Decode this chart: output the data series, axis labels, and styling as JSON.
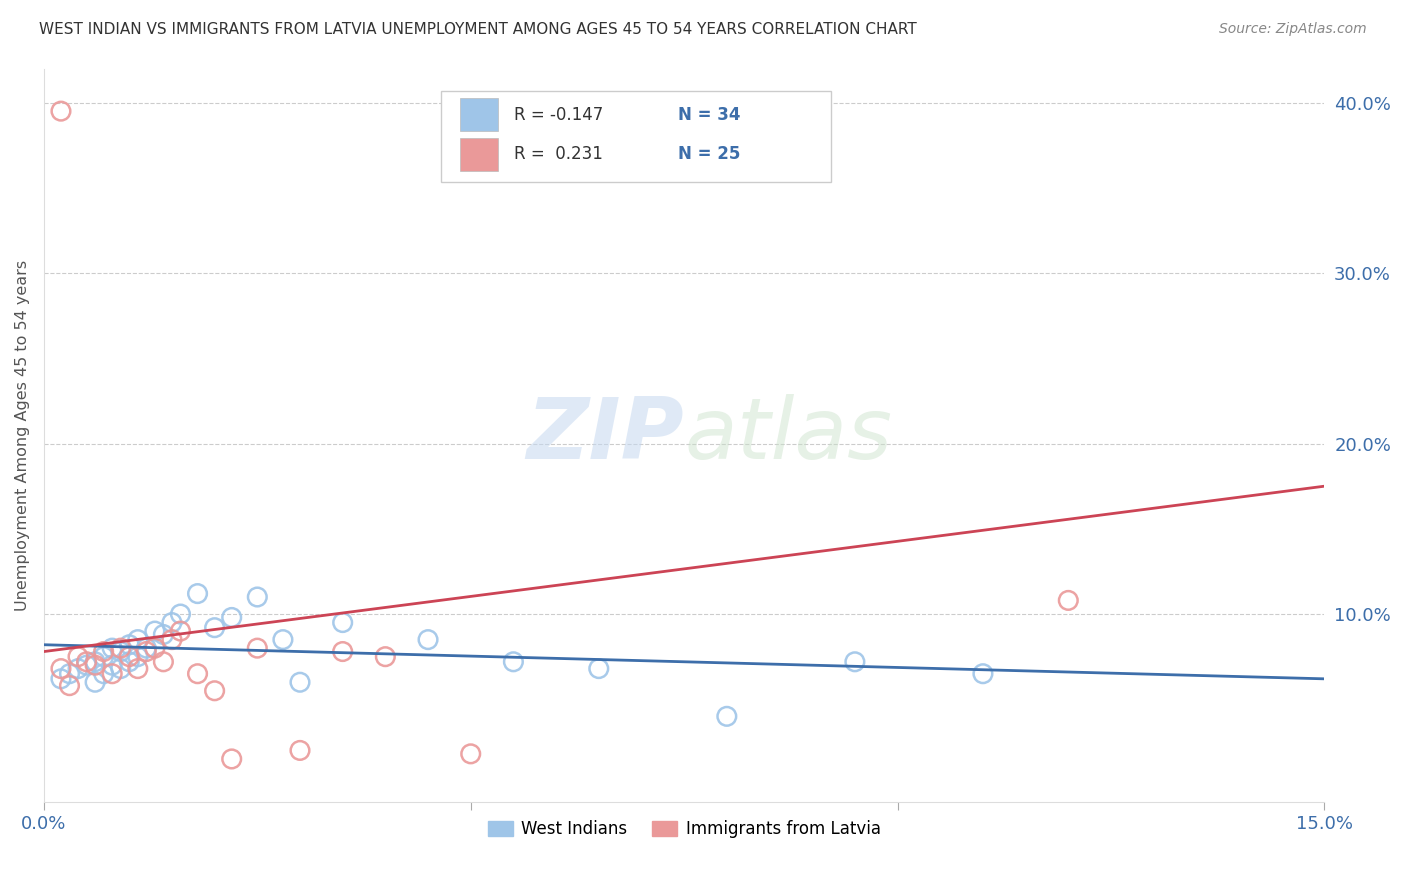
{
  "title": "WEST INDIAN VS IMMIGRANTS FROM LATVIA UNEMPLOYMENT AMONG AGES 45 TO 54 YEARS CORRELATION CHART",
  "source": "Source: ZipAtlas.com",
  "ylabel": "Unemployment Among Ages 45 to 54 years",
  "xlim": [
    0.0,
    0.15
  ],
  "ylim": [
    -0.01,
    0.42
  ],
  "color_blue": "#9fc5e8",
  "color_pink": "#ea9999",
  "line_color_blue": "#3d6eaa",
  "line_color_pink": "#cc4455",
  "watermark_zip": "ZIP",
  "watermark_atlas": "atlas",
  "label1": "West Indians",
  "label2": "Immigrants from Latvia",
  "west_indians_x": [
    0.002,
    0.003,
    0.004,
    0.005,
    0.006,
    0.006,
    0.007,
    0.007,
    0.008,
    0.008,
    0.009,
    0.009,
    0.01,
    0.01,
    0.011,
    0.011,
    0.012,
    0.013,
    0.014,
    0.015,
    0.016,
    0.018,
    0.02,
    0.022,
    0.025,
    0.028,
    0.03,
    0.035,
    0.045,
    0.055,
    0.065,
    0.08,
    0.095,
    0.11
  ],
  "west_indians_y": [
    0.062,
    0.065,
    0.068,
    0.07,
    0.06,
    0.072,
    0.065,
    0.075,
    0.07,
    0.08,
    0.068,
    0.078,
    0.072,
    0.082,
    0.075,
    0.085,
    0.08,
    0.09,
    0.088,
    0.095,
    0.1,
    0.112,
    0.092,
    0.098,
    0.11,
    0.085,
    0.06,
    0.095,
    0.085,
    0.072,
    0.068,
    0.04,
    0.072,
    0.065
  ],
  "latvia_x": [
    0.002,
    0.003,
    0.004,
    0.005,
    0.006,
    0.007,
    0.008,
    0.009,
    0.01,
    0.011,
    0.012,
    0.013,
    0.014,
    0.015,
    0.016,
    0.018,
    0.02,
    0.022,
    0.025,
    0.03,
    0.035,
    0.04,
    0.05,
    0.12,
    0.002
  ],
  "latvia_y": [
    0.068,
    0.058,
    0.075,
    0.072,
    0.07,
    0.078,
    0.065,
    0.08,
    0.075,
    0.068,
    0.078,
    0.08,
    0.072,
    0.085,
    0.09,
    0.065,
    0.055,
    0.015,
    0.08,
    0.02,
    0.078,
    0.075,
    0.018,
    0.108,
    0.395
  ],
  "background_color": "#ffffff"
}
